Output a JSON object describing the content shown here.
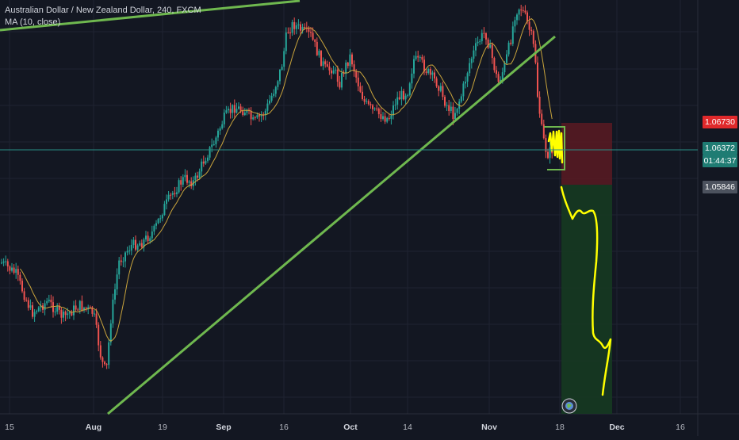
{
  "header": {
    "symbol_title": "Australian Dollar / New Zealand Dollar, 240, FXCM",
    "indicator": "MA (10, close)"
  },
  "price_tags": {
    "stop_loss": "1.06730",
    "current": "1.06372",
    "countdown": "01:44:37",
    "entry": "1.05846"
  },
  "colors": {
    "background": "#131722",
    "grid": "#1f2331",
    "candle_up": "#26a69a",
    "candle_down": "#ef5350",
    "ma": "#c9a43c",
    "trendline": "#6fb84f",
    "drawing": "#ffff00",
    "stop_zone": "#5b1a22",
    "target_zone": "#163a21"
  },
  "chart_data": {
    "type": "candlestick",
    "title": "Australian Dollar / New Zealand Dollar, 240, FXCM",
    "x_ticks": [
      "15",
      "Aug",
      "19",
      "Sep",
      "16",
      "Oct",
      "14",
      "Nov",
      "18",
      "Dec",
      "16"
    ],
    "bold_ticks": [
      "Aug",
      "Sep",
      "Oct",
      "Nov",
      "Dec"
    ],
    "price_levels": {
      "stop_loss": 1.0673,
      "current": 1.06372,
      "entry": 1.05846
    },
    "price_path_approx": [
      {
        "x": "15",
        "price": 1.0366
      },
      {
        "x": "Aug",
        "price": 1.0318
      },
      {
        "x": "19",
        "price": 1.0532
      },
      {
        "x": "Sep",
        "price": 1.064
      },
      {
        "x": "16",
        "price": 1.0763
      },
      {
        "x": "Oct",
        "price": 1.0694
      },
      {
        "x": "14",
        "price": 1.066
      },
      {
        "x": "Nov",
        "price": 1.0748
      },
      {
        "x": "Nov",
        "price": 1.0804
      },
      {
        "x": "18",
        "price": 1.0637
      }
    ],
    "trendlines": 2,
    "indicator": "MA (10, close)",
    "position": "short",
    "grid": true
  }
}
